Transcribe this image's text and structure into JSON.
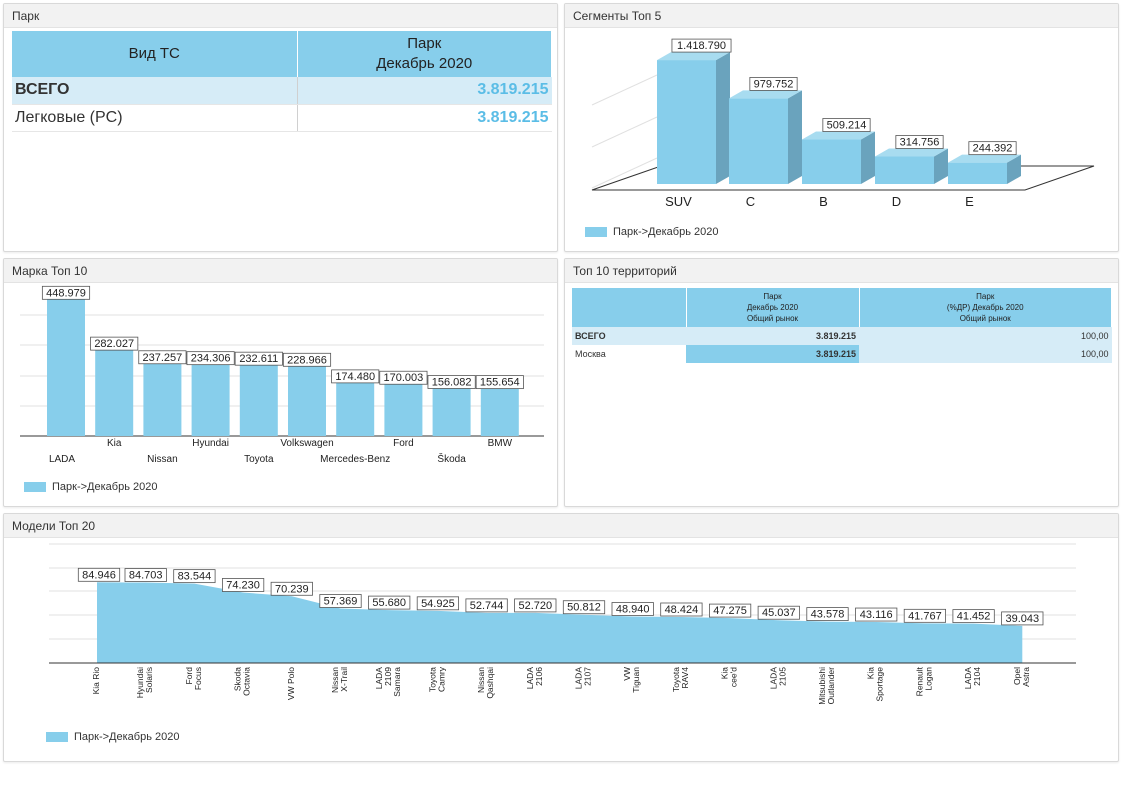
{
  "panels": {
    "park": "Парк",
    "segments": "Сегменты Топ 5",
    "brands": "Марка Топ 10",
    "territories": "Топ 10 территорий",
    "models": "Модели Топ 20"
  },
  "park_table": {
    "col1": "Вид ТС",
    "col2_line1": "Парк",
    "col2_line2": "Декабрь 2020",
    "rows": [
      {
        "label": "ВСЕГО",
        "value": "3.819.215"
      },
      {
        "label": "Легковые (PC)",
        "value": "3.819.215"
      }
    ]
  },
  "territory_table": {
    "col2": [
      "Парк",
      "Декабрь 2020",
      "Общий рынок"
    ],
    "col3": [
      "Парк",
      "(%ДР) Декабрь 2020",
      "Общий рынок"
    ],
    "rows": [
      {
        "label": "ВСЕГО",
        "value": "3.819.215",
        "pct": "100,00"
      },
      {
        "label": "Москва",
        "value": "3.819.215",
        "pct": "100,00"
      }
    ]
  },
  "legend_label": "Парк->Декабрь 2020",
  "colors": {
    "bar": "#87ceeb",
    "bar_side": "#6aa3bd",
    "bar_top": "#a8dcf0"
  },
  "chart_data": [
    {
      "type": "bar",
      "name": "segments",
      "categories": [
        "SUV",
        "C",
        "B",
        "D",
        "E"
      ],
      "values": [
        1418790,
        979752,
        509214,
        314756,
        244392
      ],
      "labels": [
        "1.418.790",
        "979.752",
        "509.214",
        "314.756",
        "244.392"
      ],
      "series": [
        {
          "name": "Парк->Декабрь 2020"
        }
      ],
      "ylim": [
        0,
        1500000
      ]
    },
    {
      "type": "bar",
      "name": "brands",
      "categories": [
        "LADA",
        "Kia",
        "Nissan",
        "Hyundai",
        "Toyota",
        "Volkswagen",
        "Mercedes-Benz",
        "Ford",
        "Škoda",
        "BMW"
      ],
      "values": [
        448979,
        282027,
        237257,
        234306,
        232611,
        228966,
        174480,
        170003,
        156082,
        155654
      ],
      "labels": [
        "448.979",
        "282.027",
        "237.257",
        "234.306",
        "232.611",
        "228.966",
        "174.480",
        "170.003",
        "156.082",
        "155.654"
      ],
      "series": [
        {
          "name": "Парк->Декабрь 2020"
        }
      ],
      "ylim": [
        0,
        450000
      ]
    },
    {
      "type": "area",
      "name": "models",
      "categories": [
        "Kia Rio",
        "Hyundai Solaris",
        "Ford Focus",
        "Skoda Octavia",
        "VW Polo",
        "Nissan X-Trail",
        "LADA 2109 Samara",
        "Toyota Camry",
        "Nissan Qashqai",
        "LADA 2106",
        "LADA 2107",
        "VW Tiguan",
        "Toyota RAV4",
        "Kia cee'd",
        "LADA 2105",
        "Mitsubishi Outlander",
        "Kia Sportage",
        "Renault Logan",
        "LADA 2104",
        "Opel Astra"
      ],
      "category_lines": [
        [
          "Kia Rio"
        ],
        [
          "Hyundai",
          "Solaris"
        ],
        [
          "Ford",
          "Focus"
        ],
        [
          "Skoda",
          "Octavia"
        ],
        [
          "VW Polo"
        ],
        [
          "Nissan",
          "X-Trail"
        ],
        [
          "LADA",
          "2109",
          "Samara"
        ],
        [
          "Toyota",
          "Camry"
        ],
        [
          "Nissan",
          "Qashqai"
        ],
        [
          "LADA",
          "2106"
        ],
        [
          "LADA",
          "2107"
        ],
        [
          "VW",
          "Tiguan"
        ],
        [
          "Toyota",
          "RAV4"
        ],
        [
          "Kia",
          "cee'd"
        ],
        [
          "LADA",
          "2105"
        ],
        [
          "Mitsubishi",
          "Outlander"
        ],
        [
          "Kia",
          "Sportage"
        ],
        [
          "Renault",
          "Logan"
        ],
        [
          "LADA",
          "2104"
        ],
        [
          "Opel",
          "Astra"
        ]
      ],
      "values": [
        84946,
        84703,
        83544,
        74230,
        70239,
        57369,
        55680,
        54925,
        52744,
        52720,
        50812,
        48940,
        48424,
        47275,
        45037,
        43578,
        43116,
        41767,
        41452,
        39043
      ],
      "labels": [
        "84.946",
        "84.703",
        "83.544",
        "74.230",
        "70.239",
        "57.369",
        "55.680",
        "54.925",
        "52.744",
        "52.720",
        "50.812",
        "48.940",
        "48.424",
        "47.275",
        "45.037",
        "43.578",
        "43.116",
        "41.767",
        "41.452",
        "39.043"
      ],
      "series": [
        {
          "name": "Парк->Декабрь 2020"
        }
      ],
      "ylim": [
        0,
        100000
      ]
    }
  ]
}
